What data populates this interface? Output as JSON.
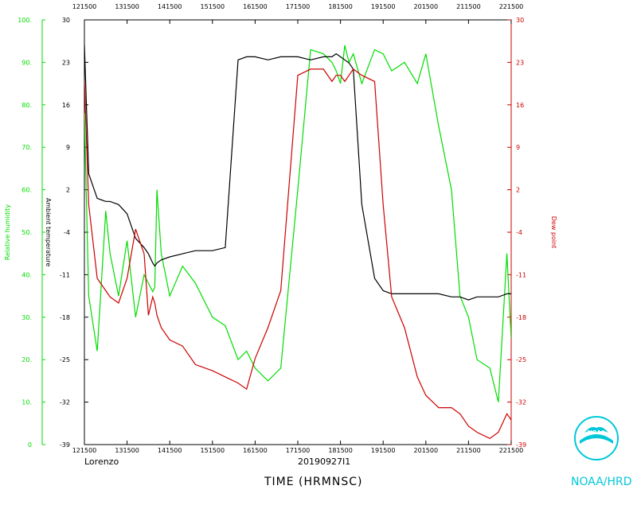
{
  "chart_data": {
    "type": "line",
    "storm_name": "Lorenzo",
    "flight_id": "20190927I1",
    "xlabel": "TIME (HRMNSC)",
    "x_ticks": [
      "121500",
      "131500",
      "141500",
      "151500",
      "161500",
      "171500",
      "181500",
      "191500",
      "201500",
      "211500",
      "221500"
    ],
    "xlim": [
      "121500",
      "221500"
    ],
    "y_left_outer": {
      "label": "Relative humidity",
      "color": "#00dd00",
      "ylim": [
        0,
        100
      ],
      "ticks": [
        "0",
        "10.",
        "20.",
        "30.",
        "40.",
        "50.",
        "60.",
        "70.",
        "80.",
        "90.",
        "100."
      ]
    },
    "y_left_inner": {
      "label": "Ambient temperature",
      "color": "#000000",
      "ylim": [
        -39,
        30
      ],
      "ticks": [
        "-39",
        "-32",
        "-25",
        "-18",
        "-11",
        "-4",
        "2",
        "9",
        "16",
        "23",
        "30"
      ]
    },
    "y_right": {
      "label": "Dew point",
      "color": "#cc0000",
      "ylim": [
        -39,
        30
      ],
      "ticks": [
        "-39",
        "-32",
        "-25",
        "-18",
        "-11",
        "-4",
        "2",
        "9",
        "16",
        "23",
        "30"
      ]
    },
    "grid": false,
    "x_hours": [
      0,
      0.1,
      0.3,
      0.5,
      0.6,
      0.8,
      1.0,
      1.2,
      1.4,
      1.5,
      1.6,
      1.65,
      1.7,
      1.8,
      2.0,
      2.3,
      2.6,
      3.0,
      3.3,
      3.6,
      3.8,
      4.0,
      4.3,
      4.6,
      5.0,
      5.3,
      5.6,
      5.8,
      5.9,
      6.0,
      6.1,
      6.2,
      6.3,
      6.5,
      6.8,
      7.0,
      7.2,
      7.5,
      7.8,
      8.0,
      8.3,
      8.6,
      8.8,
      9.0,
      9.2,
      9.5,
      9.7,
      9.9,
      10.0
    ],
    "series": [
      {
        "name": "Relative humidity",
        "axis": "rh",
        "color": "#00dd00",
        "values": [
          78,
          35,
          22,
          55,
          45,
          35,
          48,
          30,
          40,
          38,
          36,
          37,
          60,
          45,
          35,
          42,
          38,
          30,
          28,
          20,
          22,
          18,
          15,
          18,
          60,
          93,
          92,
          90,
          88,
          85,
          94,
          90,
          92,
          85,
          93,
          92,
          88,
          90,
          85,
          92,
          75,
          60,
          35,
          30,
          20,
          18,
          10,
          45,
          25
        ]
      },
      {
        "name": "Ambient temperature",
        "axis": "temp",
        "color": "#000000",
        "values": [
          26,
          5,
          1,
          0.5,
          0.5,
          0,
          -1.5,
          -5.5,
          -7,
          -8,
          -9.5,
          -10,
          -9.5,
          -9,
          -8.5,
          -8,
          -7.5,
          -7.5,
          -7,
          23.5,
          24,
          24,
          23.5,
          24,
          24,
          23.5,
          24,
          24,
          24.5,
          24,
          23.5,
          23,
          22,
          0,
          -12,
          -14,
          -14.5,
          -14.5,
          -14.5,
          -14.5,
          -14.5,
          -15,
          -15,
          -15.5,
          -15,
          -15,
          -15,
          -14.5,
          -14.5
        ]
      },
      {
        "name": "Dew point",
        "axis": "temp",
        "color": "#cc0000",
        "values": [
          20,
          0,
          -12,
          -14,
          -15,
          -16,
          -12,
          -4,
          -8,
          -18,
          -15,
          -16,
          -18,
          -20,
          -22,
          -23,
          -26,
          -27,
          -28,
          -29,
          -30,
          -25,
          -20,
          -14,
          21,
          22,
          22,
          20,
          21,
          21,
          20,
          21,
          22,
          21,
          20,
          0,
          -15,
          -20,
          -28,
          -31,
          -33,
          -33,
          -34,
          -36,
          -37,
          -38,
          -37,
          -34,
          -35
        ]
      }
    ]
  },
  "brand": {
    "org_label": "NOAA/HRD",
    "logo_text": "NOAA",
    "logo_color": "#00c8d8"
  }
}
